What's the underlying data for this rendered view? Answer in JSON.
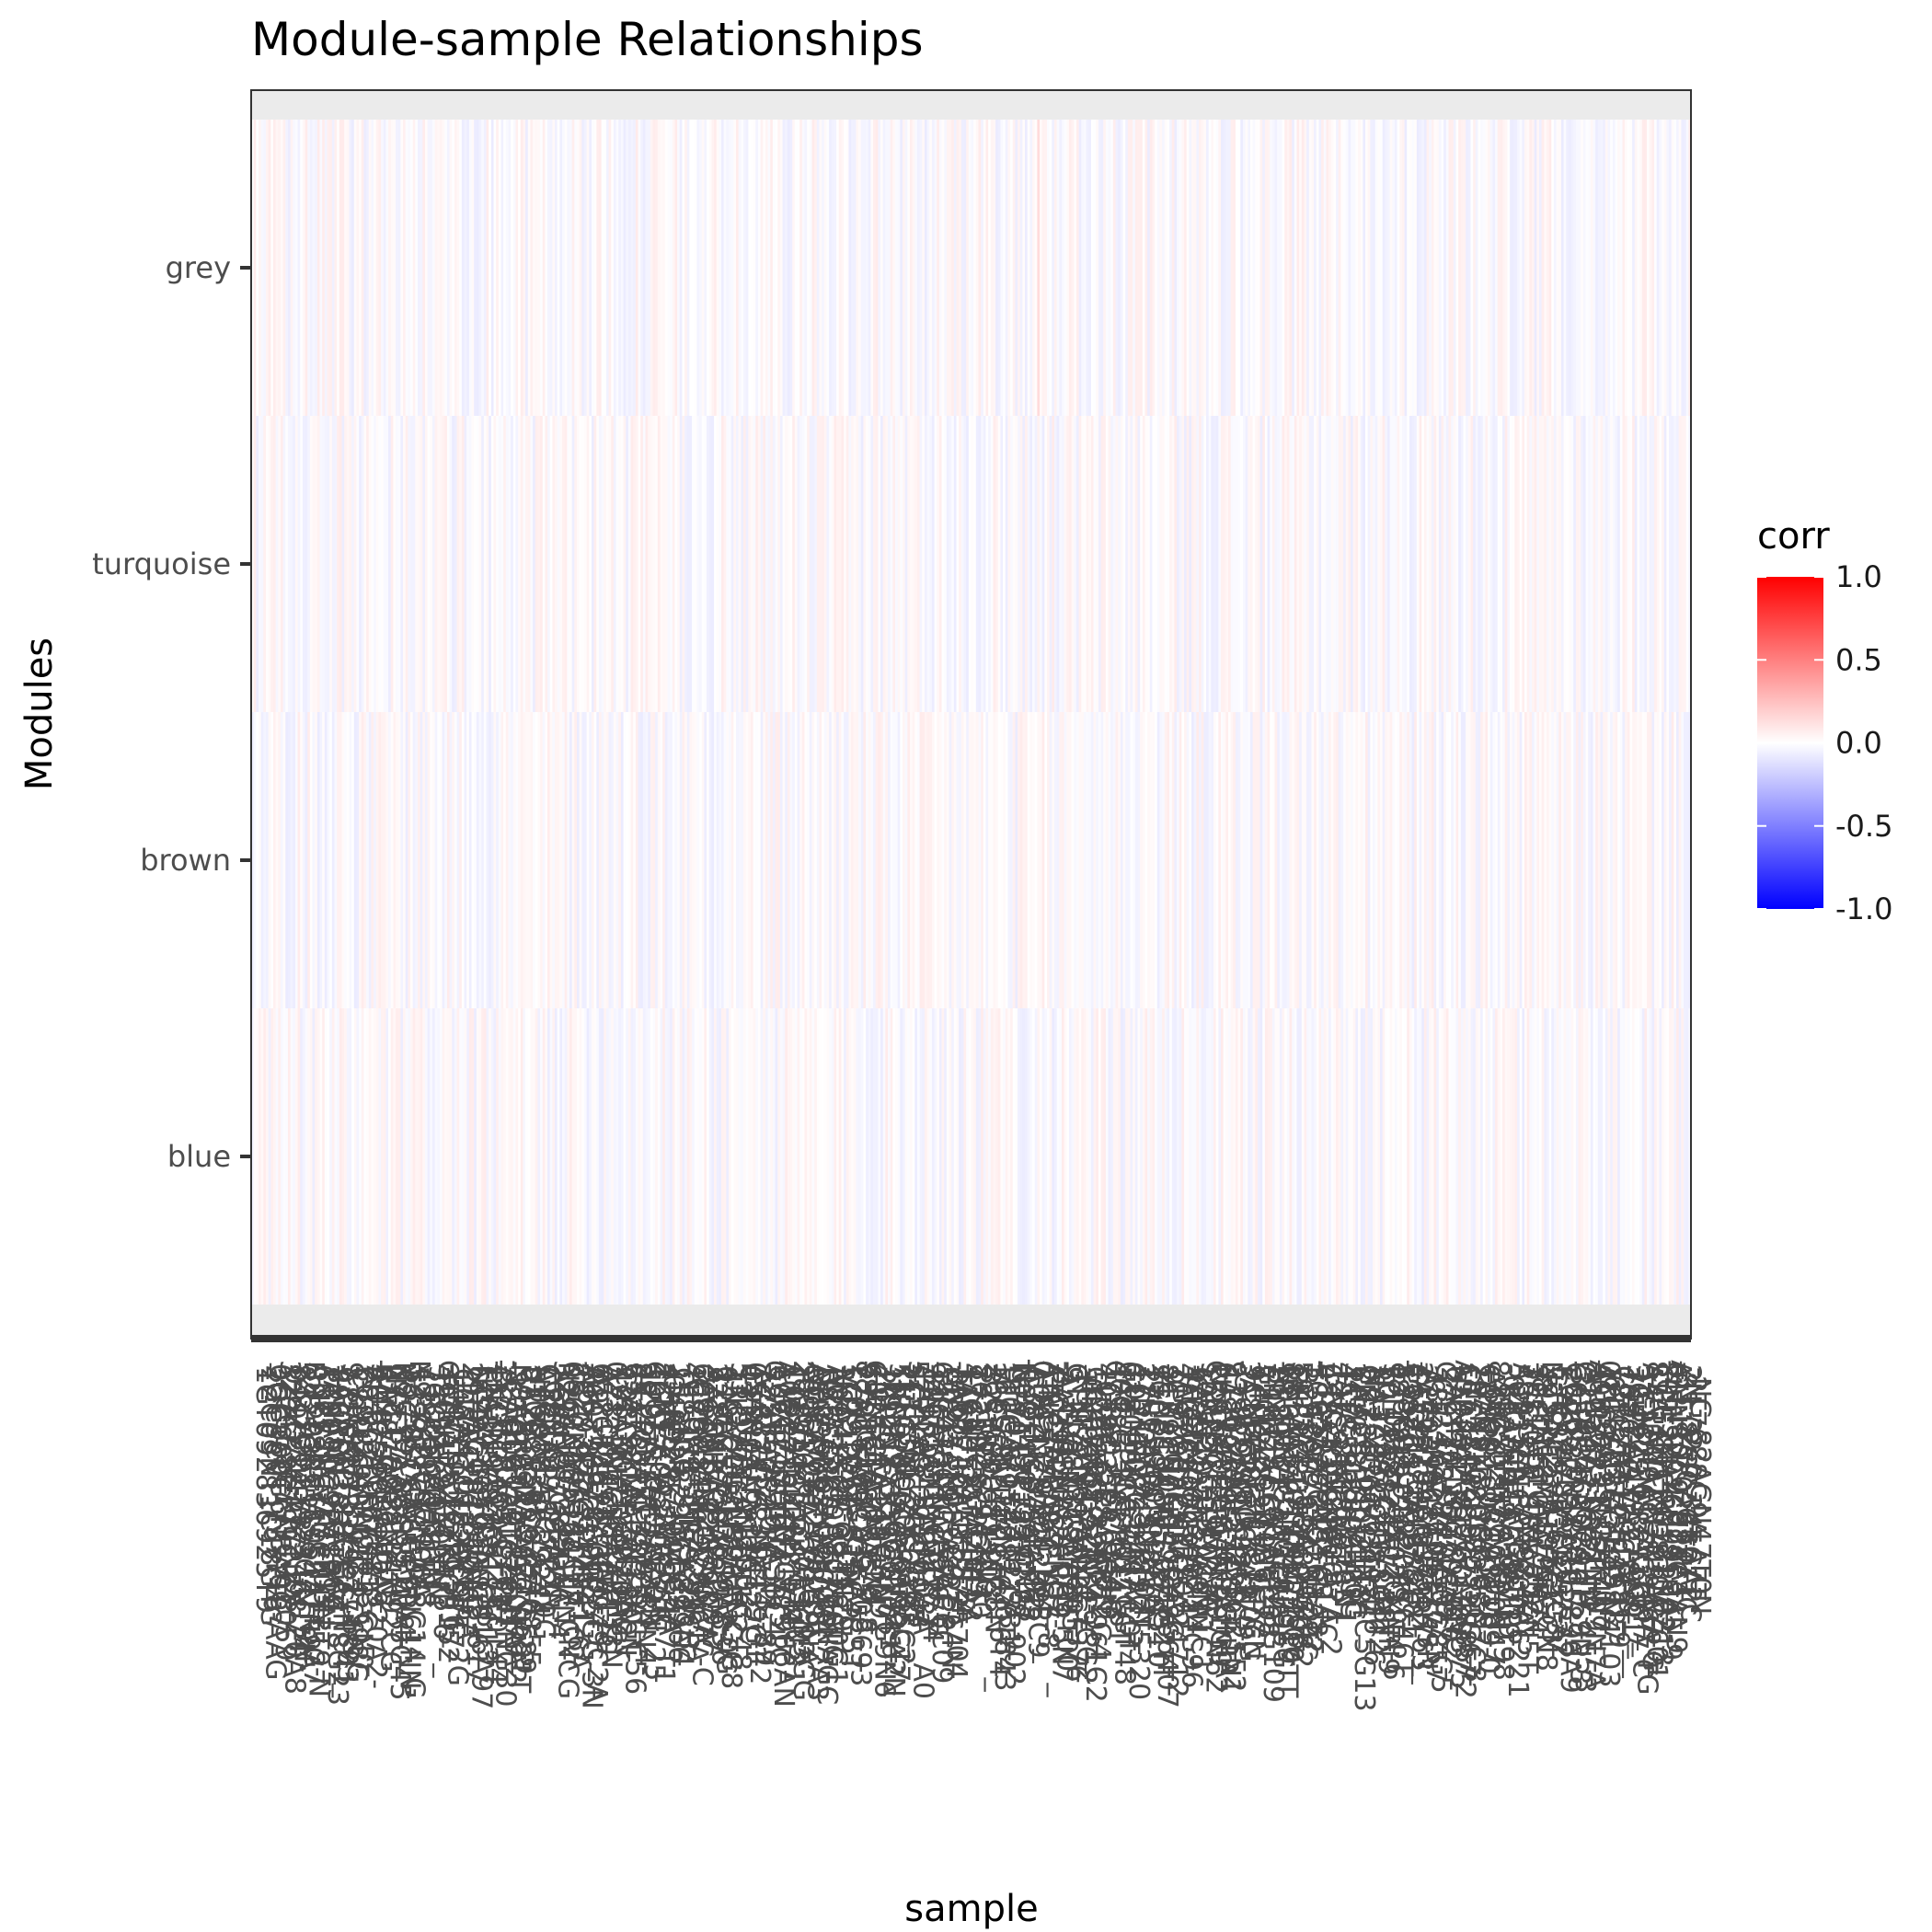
{
  "chart_data": {
    "type": "heatmap",
    "title": "Module-sample Relationships",
    "xlabel": "sample",
    "ylabel": "Modules",
    "modules": [
      "grey",
      "turquoise",
      "brown",
      "blue"
    ],
    "n_samples": 588,
    "value_range": [
      -0.1,
      0.15
    ],
    "note_values": "per-sample correlations are near zero (pale red/blue tints); individual cell values and sample names are not legible",
    "legend": {
      "title": "corr",
      "ticks": [
        "1.0",
        "0.5",
        "0.0",
        "-0.5",
        "-1.0"
      ],
      "tick_values": [
        1.0,
        0.5,
        0.0,
        -0.5,
        -1.0
      ],
      "limits": [
        -1.0,
        1.0
      ],
      "position": "right"
    },
    "colors": {
      "low": "#0000FF",
      "mid": "#FFFFFF",
      "high": "#FF0000",
      "panel_strip": "#EBEBEB",
      "panel_border": "#333333"
    }
  }
}
